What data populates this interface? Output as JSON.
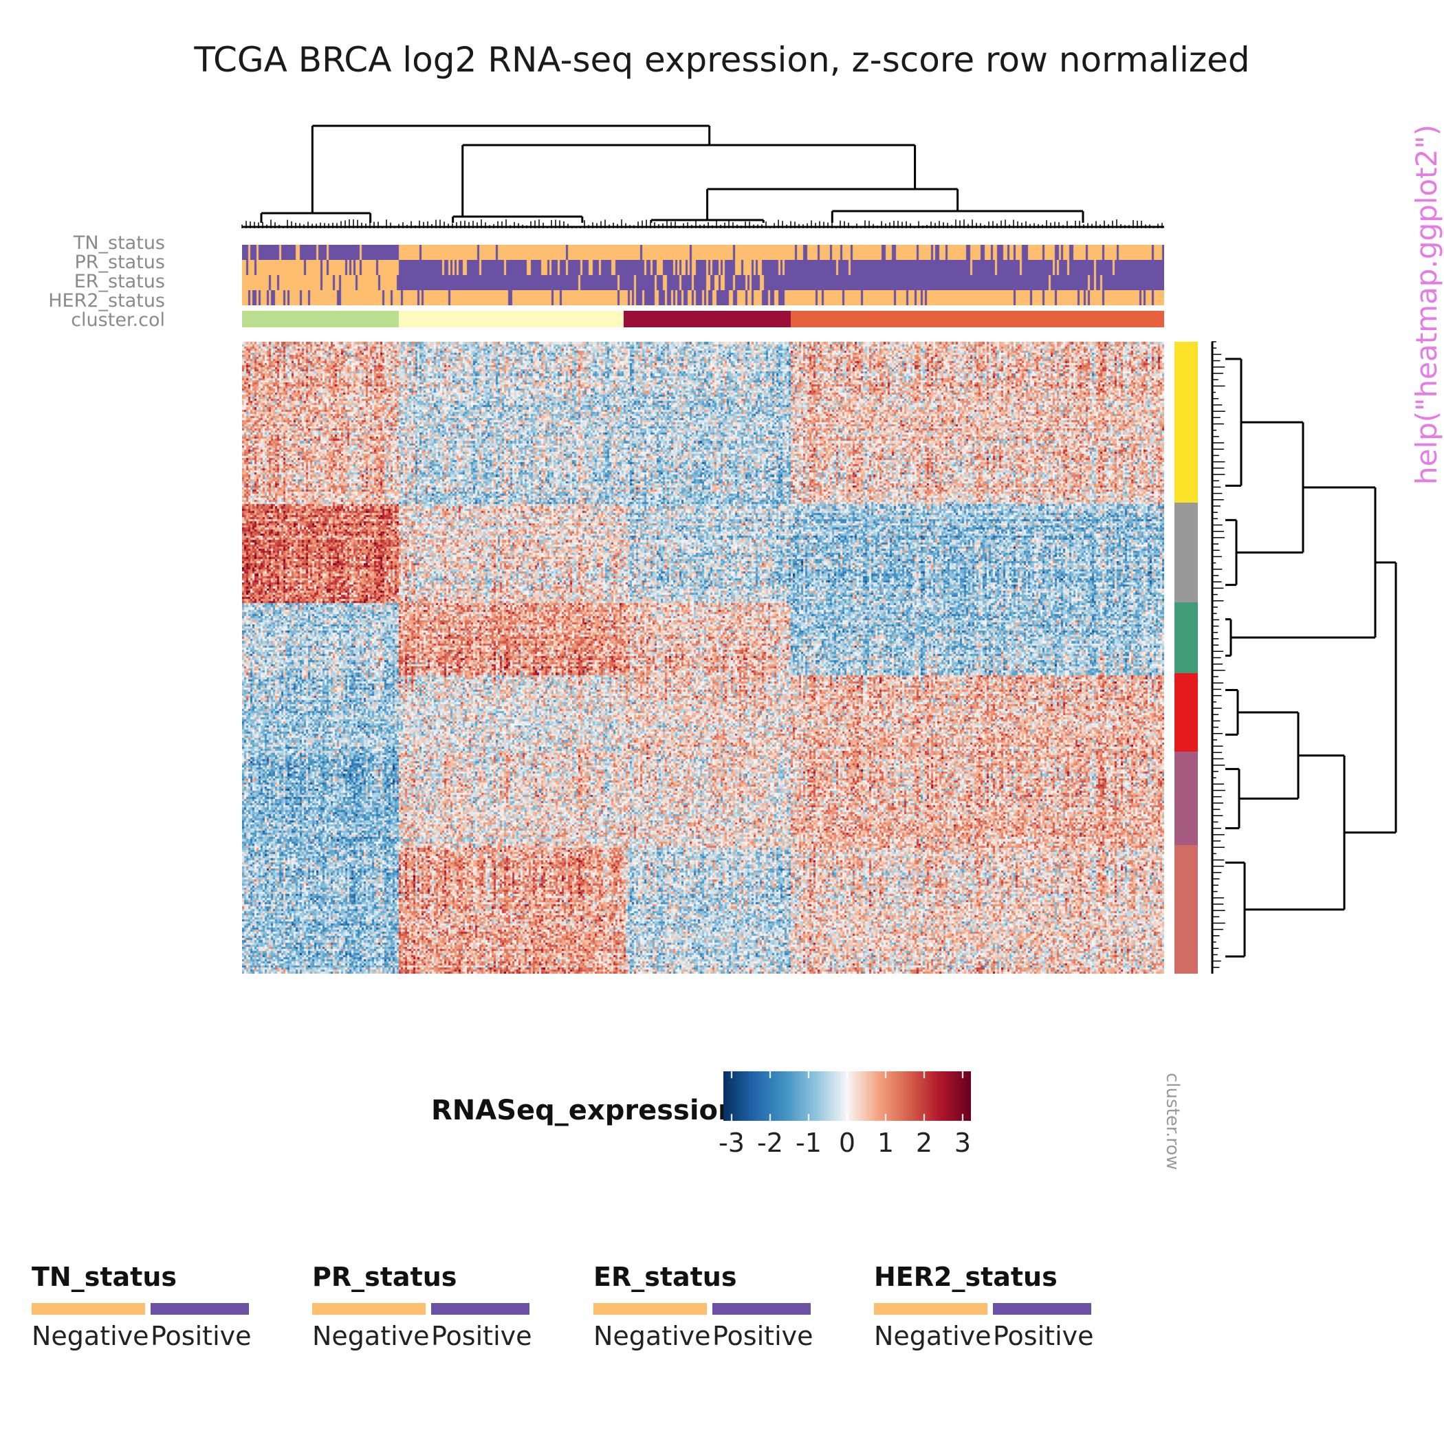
{
  "chart_data": {
    "type": "heatmap",
    "title": "TCGA BRCA log2 RNA-seq expression, z-score row normalized",
    "color_key": {
      "title": "RNASeq_expression",
      "ticks": [
        "-3",
        "-2",
        "-1",
        "0",
        "1",
        "2",
        "3"
      ],
      "range": [
        -3,
        3
      ],
      "colors": [
        "#053061",
        "#2166ac",
        "#4393c3",
        "#92c5de",
        "#f7f7f7",
        "#f4a582",
        "#d6604d",
        "#b2182b",
        "#67001f"
      ]
    },
    "column_annotations": [
      {
        "name": "TN_status",
        "rows_label": "TN_status"
      },
      {
        "name": "PR_status",
        "rows_label": "PR_status"
      },
      {
        "name": "ER_status",
        "rows_label": "ER_status"
      },
      {
        "name": "HER2_status",
        "rows_label": "HER2_status"
      },
      {
        "name": "cluster.col",
        "rows_label": "cluster.col"
      }
    ],
    "column_clusters": [
      {
        "color": "#b9df8f",
        "fraction": 0.17
      },
      {
        "color": "#fffac0",
        "fraction": 0.244
      },
      {
        "color": "#9a0f3a",
        "fraction": 0.181
      },
      {
        "color": "#e8613f",
        "fraction": 0.405
      }
    ],
    "row_clusters": [
      {
        "color": "#fbe229",
        "fraction": 0.255
      },
      {
        "color": "#999999",
        "fraction": 0.157
      },
      {
        "color": "#409b76",
        "fraction": 0.112
      },
      {
        "color": "#e51a1c",
        "fraction": 0.125
      },
      {
        "color": "#a55a80",
        "fraction": 0.148
      },
      {
        "color": "#d16c64",
        "fraction": 0.203
      }
    ],
    "row_cluster_label": "cluster.row",
    "side_note": "help(\"heatmap.ggplot2\")",
    "legends": [
      {
        "title": "TN_status",
        "levels": [
          {
            "label": "Negative",
            "color": "#fdbf6f"
          },
          {
            "label": "Positive",
            "color": "#6a51a3"
          }
        ]
      },
      {
        "title": "PR_status",
        "levels": [
          {
            "label": "Negative",
            "color": "#fdbf6f"
          },
          {
            "label": "Positive",
            "color": "#6a51a3"
          }
        ]
      },
      {
        "title": "ER_status",
        "levels": [
          {
            "label": "Negative",
            "color": "#fdbf6f"
          },
          {
            "label": "Positive",
            "color": "#6a51a3"
          }
        ]
      },
      {
        "title": "HER2_status",
        "levels": [
          {
            "label": "Negative",
            "color": "#fdbf6f"
          },
          {
            "label": "Positive",
            "color": "#6a51a3"
          }
        ]
      }
    ]
  }
}
